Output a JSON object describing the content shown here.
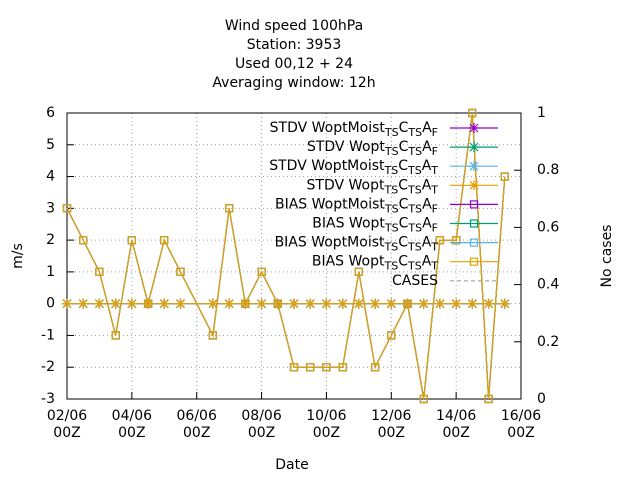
{
  "chart_data": {
    "type": "line",
    "title": [
      "Wind speed 100hPa",
      "Station:     3953",
      "Used  00,12  + 24",
      "Averaging window: 12h"
    ],
    "xlabel": "Date",
    "ylabel": "m/s",
    "y2label": "No cases",
    "x": [
      0,
      12,
      24,
      36,
      48,
      60,
      72,
      84,
      108,
      120,
      132,
      144,
      156,
      168,
      180,
      192,
      204,
      216,
      228,
      240,
      252,
      264,
      276,
      288,
      300,
      312,
      324
    ],
    "xlim": [
      0,
      336
    ],
    "xticks": [
      {
        "value": 0,
        "label": "02/06\n00Z"
      },
      {
        "value": 48,
        "label": "04/06\n00Z"
      },
      {
        "value": 96,
        "label": "06/06\n00Z"
      },
      {
        "value": 144,
        "label": "08/06\n00Z"
      },
      {
        "value": 192,
        "label": "10/06\n00Z"
      },
      {
        "value": 240,
        "label": "12/06\n00Z"
      },
      {
        "value": 288,
        "label": "14/06\n00Z"
      },
      {
        "value": 336,
        "label": "16/06\n00Z"
      }
    ],
    "ylim": [
      -3,
      6
    ],
    "yticks": [
      -3,
      -2,
      -1,
      0,
      1,
      2,
      3,
      4,
      5,
      6
    ],
    "y2lim": [
      0,
      1
    ],
    "y2ticks": [
      0,
      0.2,
      0.4,
      0.6,
      0.8,
      1
    ],
    "grid": true,
    "legend": "top-right",
    "series": [
      {
        "name": "STDV WoptMoist_{TS}C_{TS}A_{F}",
        "color": "#9400d3",
        "marker": "star",
        "values": [
          0,
          0,
          0,
          0,
          0,
          0,
          0,
          0,
          0,
          0,
          0,
          0,
          0,
          0,
          0,
          0,
          0,
          0,
          0,
          0,
          0,
          0,
          0,
          0,
          0,
          0,
          0
        ]
      },
      {
        "name": "STDV Wopt_{TS}C_{TS}A_{F}",
        "color": "#009e73",
        "marker": "star",
        "values": [
          0,
          0,
          0,
          0,
          0,
          0,
          0,
          0,
          0,
          0,
          0,
          0,
          0,
          0,
          0,
          0,
          0,
          0,
          0,
          0,
          0,
          0,
          0,
          0,
          0,
          0,
          0
        ]
      },
      {
        "name": "STDV WoptMoist_{TS}C_{TS}A_{T}",
        "color": "#56b4e9",
        "marker": "star",
        "values": [
          0,
          0,
          0,
          0,
          0,
          0,
          0,
          0,
          0,
          0,
          0,
          0,
          0,
          0,
          0,
          0,
          0,
          0,
          0,
          0,
          0,
          0,
          0,
          0,
          0,
          0,
          0
        ]
      },
      {
        "name": "STDV Wopt_{TS}C_{TS}A_{T}",
        "color": "#e69f00",
        "marker": "star",
        "values": [
          0,
          0,
          0,
          0,
          0,
          0,
          0,
          0,
          0,
          0,
          0,
          0,
          0,
          0,
          0,
          0,
          0,
          0,
          0,
          0,
          0,
          0,
          0,
          0,
          0,
          0,
          0
        ]
      },
      {
        "name": "BIAS WoptMoist_{TS}C_{TS}A_{F}",
        "color": "#9400d3",
        "marker": "square",
        "values": [
          3,
          2,
          1,
          -1,
          2,
          0,
          2,
          1,
          -1,
          3,
          0,
          1,
          0,
          -2,
          -2,
          -2,
          -2,
          1,
          -2,
          -1,
          0,
          -3,
          2,
          2,
          6,
          -3,
          4
        ]
      },
      {
        "name": "BIAS Wopt_{TS}C_{TS}A_{F}",
        "color": "#009e73",
        "marker": "square",
        "values": [
          3,
          2,
          1,
          -1,
          2,
          0,
          2,
          1,
          -1,
          3,
          0,
          1,
          0,
          -2,
          -2,
          -2,
          -2,
          1,
          -2,
          -1,
          0,
          -3,
          2,
          2,
          6,
          -3,
          4
        ]
      },
      {
        "name": "BIAS WoptMoist_{TS}C_{TS}A_{T}",
        "color": "#56b4e9",
        "marker": "square",
        "values": [
          3,
          2,
          1,
          -1,
          2,
          0,
          2,
          1,
          -1,
          3,
          0,
          1,
          0,
          -2,
          -2,
          -2,
          -2,
          1,
          -2,
          -1,
          0,
          -3,
          2,
          2,
          6,
          -3,
          4
        ]
      },
      {
        "name": "BIAS Wopt_{TS}C_{TS}A_{T}",
        "color": "#e69f00",
        "marker": "square",
        "values": [
          3,
          2,
          1,
          -1,
          2,
          0,
          2,
          1,
          -1,
          3,
          0,
          1,
          0,
          -2,
          -2,
          -2,
          -2,
          1,
          -2,
          -1,
          0,
          -3,
          2,
          2,
          6,
          -3,
          4
        ]
      },
      {
        "name": "CASES",
        "color": "#a0a0a0",
        "marker": "none",
        "dashed": true,
        "axis": "y2",
        "values": [
          null,
          null,
          null,
          null,
          null,
          null,
          null,
          null,
          null,
          null,
          null,
          null,
          null,
          null,
          null,
          null,
          null,
          null,
          null,
          null,
          null,
          null,
          null,
          null,
          null,
          null,
          null
        ]
      }
    ]
  }
}
